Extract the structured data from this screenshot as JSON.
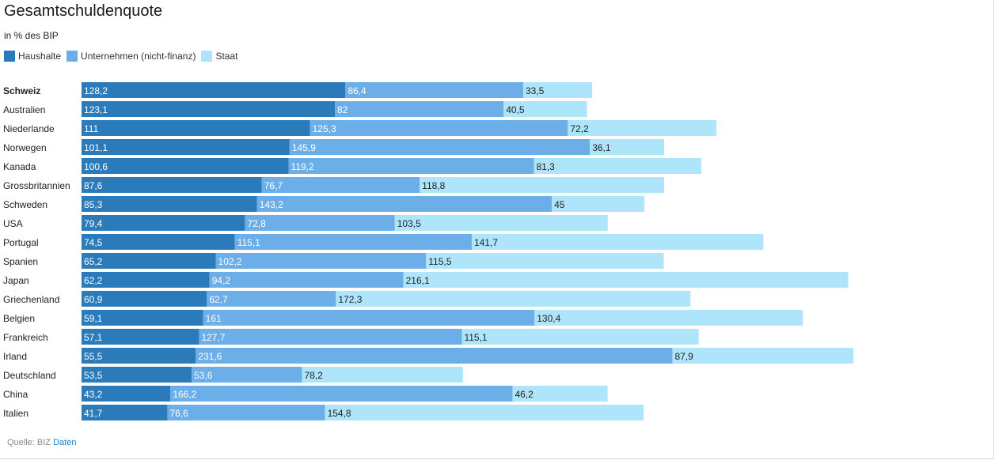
{
  "chart_data": {
    "type": "bar",
    "orientation": "horizontal",
    "stacked": true,
    "title": "Gesamtschuldenquote",
    "subtitle": "in % des BIP",
    "categories": [
      "Schweiz",
      "Australien",
      "Niederlande",
      "Norwegen",
      "Kanada",
      "Grossbritannien",
      "Schweden",
      "USA",
      "Portugal",
      "Spanien",
      "Japan",
      "Griechenland",
      "Belgien",
      "Frankreich",
      "Irland",
      "Deutschland",
      "China",
      "Italien"
    ],
    "highlight_category": "Schweiz",
    "series": [
      {
        "name": "Haushalte",
        "color": "#2b7bba",
        "values": [
          128.2,
          123.1,
          111,
          101.1,
          100.6,
          87.6,
          85.3,
          79.4,
          74.5,
          65.2,
          62.2,
          60.9,
          59.1,
          57.1,
          55.5,
          53.5,
          43.2,
          41.7
        ]
      },
      {
        "name": "Unternehmen (nicht-finanz)",
        "color": "#6cafe8",
        "values": [
          86.4,
          82,
          125.3,
          145.9,
          119.2,
          76.7,
          143.2,
          72.8,
          115.1,
          102.2,
          94.2,
          62.7,
          161,
          127.7,
          231.6,
          53.6,
          166.2,
          76.6
        ]
      },
      {
        "name": "Staat",
        "color": "#aee5fb",
        "values": [
          33.5,
          40.5,
          72.2,
          36.1,
          81.3,
          118.8,
          45,
          103.5,
          141.7,
          115.5,
          216.1,
          172.3,
          130.4,
          115.1,
          87.9,
          78.2,
          46.2,
          154.8
        ]
      }
    ],
    "value_labels": [
      [
        "128,2",
        "123,1",
        "111",
        "101,1",
        "100,6",
        "87,6",
        "85,3",
        "79,4",
        "74,5",
        "65,2",
        "62,2",
        "60,9",
        "59,1",
        "57,1",
        "55,5",
        "53,5",
        "43,2",
        "41,7"
      ],
      [
        "86,4",
        "82",
        "125,3",
        "145,9",
        "119,2",
        "76,7",
        "143,2",
        "72,8",
        "115,1",
        "102,2",
        "94,2",
        "62,7",
        "161",
        "127,7",
        "231,6",
        "53,6",
        "166,2",
        "76,6"
      ],
      [
        "33,5",
        "40,5",
        "72,2",
        "36,1",
        "81,3",
        "118,8",
        "45",
        "103,5",
        "141,7",
        "115,5",
        "216,1",
        "172,3",
        "130,4",
        "115,1",
        "87,9",
        "78,2",
        "46,2",
        "154,8"
      ]
    ],
    "legend_position": "top-left",
    "grid": false
  },
  "source": {
    "label": "Quelle: BIZ",
    "link": "Daten"
  }
}
